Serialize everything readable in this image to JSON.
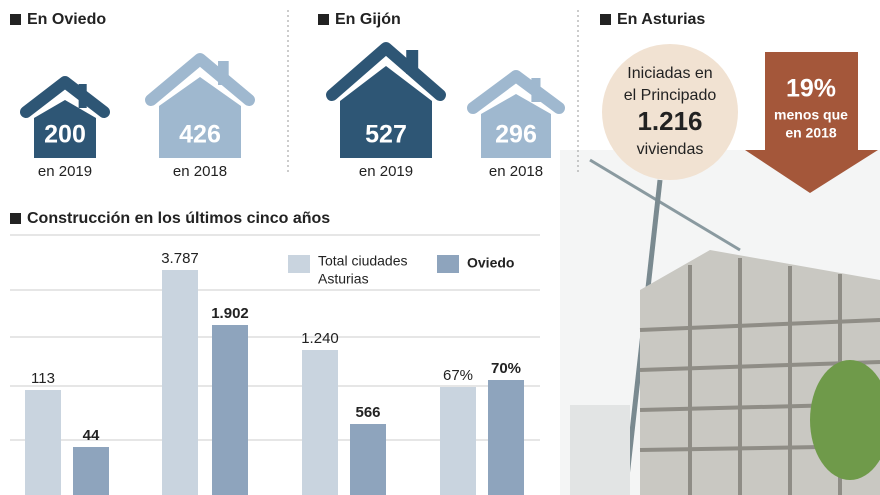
{
  "oviedo": {
    "title": "En Oviedo",
    "houses": [
      {
        "value": "200",
        "label": "en 2019"
      },
      {
        "value": "426",
        "label": "en 2018"
      }
    ]
  },
  "gijon": {
    "title": "En Gijón",
    "houses": [
      {
        "value": "527",
        "label": "en 2019"
      },
      {
        "value": "296",
        "label": "en 2018"
      }
    ]
  },
  "asturias": {
    "title": "En Asturias",
    "circle": [
      "Iniciadas en",
      "el Principado",
      "1.216",
      "viviendas"
    ],
    "arrow": [
      "19%",
      "menos que",
      "en 2018"
    ]
  },
  "construction": {
    "title": "Construcción en los últimos cinco años",
    "legend": {
      "total": [
        "Total ciudades",
        "Asturias"
      ],
      "oviedo": "Oviedo"
    },
    "groups": [
      {
        "total": "113",
        "oviedo": "44"
      },
      {
        "total": "3.787",
        "oviedo": "1.902"
      },
      {
        "total": "1.240",
        "oviedo": "566"
      },
      {
        "total": "67%",
        "oviedo": "70%"
      }
    ]
  }
}
